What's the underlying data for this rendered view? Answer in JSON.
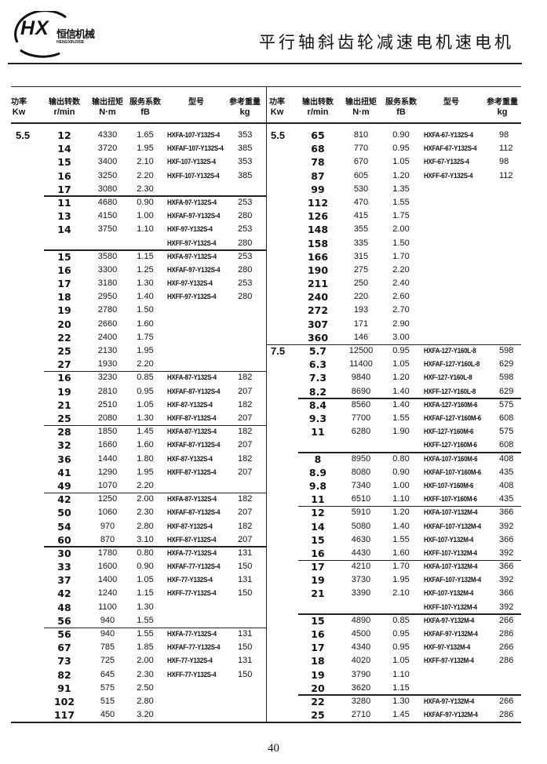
{
  "header": {
    "logo_mark": "HX",
    "logo_name": "恒信机械",
    "logo_pinyin": "HENGXINJIXIE",
    "title": "平行轴斜齿轮减速电机速电机"
  },
  "columns": [
    {
      "cn": "功率",
      "unit": "Kw"
    },
    {
      "cn": "输出转数",
      "unit": "r/min"
    },
    {
      "cn": "输出扭矩",
      "unit": "N·m"
    },
    {
      "cn": "服务系数",
      "unit": "fB"
    },
    {
      "cn": "型号",
      "unit": ""
    },
    {
      "cn": "参考重量",
      "unit": "kg"
    }
  ],
  "left": {
    "groups": [
      {
        "power": "5.5",
        "rows": [
          [
            "12",
            "4330",
            "1.65",
            "HXFA-107-Y132S-4",
            "353"
          ],
          [
            "14",
            "3720",
            "1.95",
            "HXFAF-107-Y132S-4",
            "385"
          ],
          [
            "15",
            "3400",
            "2.10",
            "HXF-107-Y132S-4",
            "353"
          ],
          [
            "16",
            "3250",
            "2.20",
            "HXFF-107-Y132S-4",
            "385"
          ],
          [
            "17",
            "3080",
            "2.30",
            "",
            ""
          ]
        ]
      },
      {
        "rows": [
          [
            "11",
            "4680",
            "0.90",
            "HXFA-97-Y132S-4",
            "253"
          ],
          [
            "13",
            "4150",
            "1.00",
            "HXFAF-97-Y132S-4",
            "280"
          ],
          [
            "14",
            "3750",
            "1.10",
            "HXF-97-Y132S-4",
            "253"
          ],
          [
            "",
            "",
            "",
            "HXFF-97-Y132S-4",
            "280"
          ]
        ]
      },
      {
        "rows": [
          [
            "15",
            "3580",
            "1.15",
            "HXFA-97-Y132S-4",
            "253"
          ],
          [
            "16",
            "3300",
            "1.25",
            "HXFAF-97-Y132S-4",
            "280"
          ],
          [
            "17",
            "3180",
            "1.30",
            "HXF-97-Y132S-4",
            "253"
          ],
          [
            "18",
            "2950",
            "1.40",
            "HXFF-97-Y132S-4",
            "280"
          ],
          [
            "19",
            "2780",
            "1.50",
            "",
            ""
          ],
          [
            "20",
            "2660",
            "1.60",
            "",
            ""
          ],
          [
            "22",
            "2400",
            "1.75",
            "",
            ""
          ],
          [
            "25",
            "2130",
            "1.95",
            "",
            ""
          ],
          [
            "27",
            "1930",
            "2.20",
            "",
            ""
          ]
        ]
      },
      {
        "rows": [
          [
            "16",
            "3230",
            "0.85",
            "HXFA-87-Y132S-4",
            "182"
          ],
          [
            "19",
            "2810",
            "0.95",
            "HXFAF-87-Y132S-4",
            "207"
          ],
          [
            "21",
            "2510",
            "1.05",
            "HXF-87-Y132S-4",
            "182"
          ],
          [
            "25",
            "2080",
            "1.30",
            "HXFF-87-Y132S-4",
            "207"
          ]
        ]
      },
      {
        "rows": [
          [
            "28",
            "1850",
            "1.45",
            "HXFA-87-Y132S-4",
            "182"
          ],
          [
            "32",
            "1660",
            "1.60",
            "HXFAF-87-Y132S-4",
            "207"
          ],
          [
            "36",
            "1440",
            "1.80",
            "HXF-87-Y132S-4",
            "182"
          ],
          [
            "41",
            "1290",
            "1.95",
            "HXFF-87-Y132S-4",
            "207"
          ],
          [
            "49",
            "1070",
            "2.20",
            "",
            ""
          ]
        ]
      },
      {
        "rows": [
          [
            "42",
            "1250",
            "2.00",
            "HXFA-87-Y132S-4",
            "182"
          ],
          [
            "50",
            "1060",
            "2.30",
            "HXFAF-87-Y132S-4",
            "207"
          ],
          [
            "54",
            "970",
            "2.80",
            "HXF-87-Y132S-4",
            "182"
          ],
          [
            "60",
            "870",
            "3.10",
            "HXFF-87-Y132S-4",
            "207"
          ]
        ]
      },
      {
        "rows": [
          [
            "30",
            "1780",
            "0.80",
            "HXFA-77-Y132S-4",
            "131"
          ],
          [
            "33",
            "1600",
            "0.90",
            "HXFAF-77-Y132S-4",
            "150"
          ],
          [
            "37",
            "1400",
            "1.05",
            "HXF-77-Y132S-4",
            "131"
          ],
          [
            "42",
            "1240",
            "1.15",
            "HXFF-77-Y132S-4",
            "150"
          ],
          [
            "48",
            "1100",
            "1.30",
            "",
            ""
          ],
          [
            "56",
            "940",
            "1.55",
            "",
            ""
          ]
        ]
      },
      {
        "rows": [
          [
            "56",
            "940",
            "1.55",
            "HXFA-77-Y132S-4",
            "131"
          ],
          [
            "67",
            "785",
            "1.85",
            "HXFAF-77-Y132S-4",
            "150"
          ],
          [
            "73",
            "725",
            "2.00",
            "HXF-77-Y132S-4",
            "131"
          ],
          [
            "82",
            "645",
            "2.30",
            "HXFF-77-Y132S-4",
            "150"
          ],
          [
            "91",
            "575",
            "2.50",
            "",
            ""
          ],
          [
            "102",
            "515",
            "2.80",
            "",
            ""
          ],
          [
            "117",
            "450",
            "3.20",
            "",
            ""
          ]
        ]
      }
    ]
  },
  "right": {
    "groups": [
      {
        "power": "5.5",
        "rows": [
          [
            "65",
            "810",
            "0.90",
            "HXFA-67-Y132S-4",
            "98"
          ],
          [
            "68",
            "770",
            "0.95",
            "HXFAF-67-Y132S-4",
            "112"
          ],
          [
            "78",
            "670",
            "1.05",
            "HXF-67-Y132S-4",
            "98"
          ],
          [
            "87",
            "605",
            "1.20",
            "HXFF-67-Y132S-4",
            "112"
          ],
          [
            "99",
            "530",
            "1.35",
            "",
            ""
          ],
          [
            "112",
            "470",
            "1.55",
            "",
            ""
          ],
          [
            "126",
            "415",
            "1.75",
            "",
            ""
          ],
          [
            "148",
            "355",
            "2.00",
            "",
            ""
          ],
          [
            "158",
            "335",
            "1.50",
            "",
            ""
          ],
          [
            "166",
            "315",
            "1.70",
            "",
            ""
          ],
          [
            "190",
            "275",
            "2.20",
            "",
            ""
          ],
          [
            "211",
            "250",
            "2.40",
            "",
            ""
          ],
          [
            "240",
            "220",
            "2.60",
            "",
            ""
          ],
          [
            "272",
            "193",
            "2.70",
            "",
            ""
          ],
          [
            "307",
            "171",
            "2.90",
            "",
            ""
          ],
          [
            "360",
            "146",
            "3.00",
            "",
            ""
          ]
        ]
      },
      {
        "power": "7.5",
        "rows": [
          [
            "5.7",
            "12500",
            "0.95",
            "HXFA-127-Y160L-8",
            "598"
          ],
          [
            "6.3",
            "11400",
            "1.05",
            "HXFAF-127-Y160L-8",
            "629"
          ],
          [
            "7.3",
            "9840",
            "1.20",
            "HXF-127-Y160L-8",
            "598"
          ],
          [
            "8.2",
            "8690",
            "1.40",
            "HXFF-127-Y160L-8",
            "629"
          ]
        ]
      },
      {
        "rows": [
          [
            "8.4",
            "8560",
            "1.40",
            "HXFA-127-Y160M-6",
            "575"
          ],
          [
            "9.3",
            "7700",
            "1.55",
            "HXFAF-127-Y160M-6",
            "608"
          ],
          [
            "11",
            "6280",
            "1.90",
            "HXF-127-Y160M-6",
            "575"
          ],
          [
            "",
            "",
            "",
            "HXFF-127-Y160M-6",
            "608"
          ]
        ]
      },
      {
        "rows": [
          [
            "8",
            "8950",
            "0.80",
            "HXFA-107-Y160M-6",
            "408"
          ],
          [
            "8.9",
            "8080",
            "0.90",
            "HXFAF-107-Y160M-6",
            "435"
          ],
          [
            "9.8",
            "7340",
            "1.00",
            "HXF-107-Y160M-6",
            "408"
          ],
          [
            "11",
            "6510",
            "1.10",
            "HXFF-107-Y160M-6",
            "435"
          ]
        ]
      },
      {
        "rows": [
          [
            "12",
            "5910",
            "1.20",
            "HXFA-107-Y132M-4",
            "366"
          ],
          [
            "14",
            "5080",
            "1.40",
            "HXFAF-107-Y132M-4",
            "392"
          ],
          [
            "15",
            "4630",
            "1.55",
            "HXF-107-Y132M-4",
            "366"
          ],
          [
            "16",
            "4430",
            "1.60",
            "HXFF-107-Y132M-4",
            "392"
          ]
        ]
      },
      {
        "rows": [
          [
            "17",
            "4210",
            "1.70",
            "HXFA-107-Y132M-4",
            "366"
          ],
          [
            "19",
            "3730",
            "1.95",
            "HXFAF-107-Y132M-4",
            "392"
          ],
          [
            "21",
            "3390",
            "2.10",
            "HXF-107-Y132M-4",
            "366"
          ],
          [
            "",
            "",
            "",
            "HXFF-107-Y132M-4",
            "392"
          ]
        ]
      },
      {
        "rows": [
          [
            "15",
            "4890",
            "0.85",
            "HXFA-97-Y132M-4",
            "266"
          ],
          [
            "16",
            "4500",
            "0.95",
            "HXFAF-97-Y132M-4",
            "286"
          ],
          [
            "17",
            "4340",
            "0.95",
            "HXF-97-Y132M-4",
            "266"
          ],
          [
            "18",
            "4020",
            "1.05",
            "HXFF-97-Y132M-4",
            "286"
          ],
          [
            "19",
            "3790",
            "1.10",
            "",
            ""
          ],
          [
            "20",
            "3620",
            "1.15",
            "",
            ""
          ]
        ]
      },
      {
        "rows": [
          [
            "22",
            "3280",
            "1.30",
            "HXFA-97-Y132M-4",
            "266"
          ],
          [
            "25",
            "2710",
            "1.45",
            "HXFAF-97-Y132M-4",
            "286"
          ]
        ]
      }
    ]
  },
  "page_number": "40"
}
